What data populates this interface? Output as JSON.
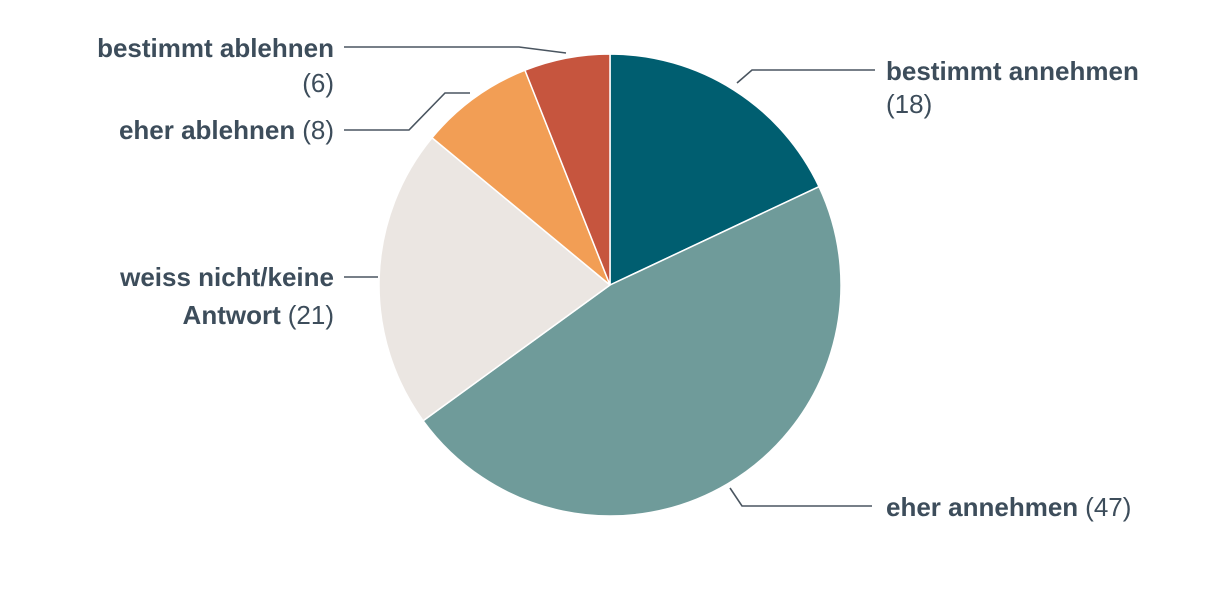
{
  "chart_data": {
    "type": "pie",
    "title": "",
    "slices": [
      {
        "label": "bestimmt annehmen",
        "value_text": "(18)",
        "value": 18,
        "color": "#005e70"
      },
      {
        "label": "eher annehmen",
        "value_text": "(47)",
        "value": 47,
        "color": "#6f9b9a"
      },
      {
        "label": "weiss nicht/keine Antwort",
        "value_text": "(21)",
        "value": 21,
        "color": "#ebe6e2"
      },
      {
        "label": "eher ablehnen",
        "value_text": "(8)",
        "value": 8,
        "color": "#f29e55"
      },
      {
        "label": "bestimmt ablehnen",
        "value_text": "(6)",
        "value": 6,
        "color": "#c6553e"
      }
    ]
  }
}
